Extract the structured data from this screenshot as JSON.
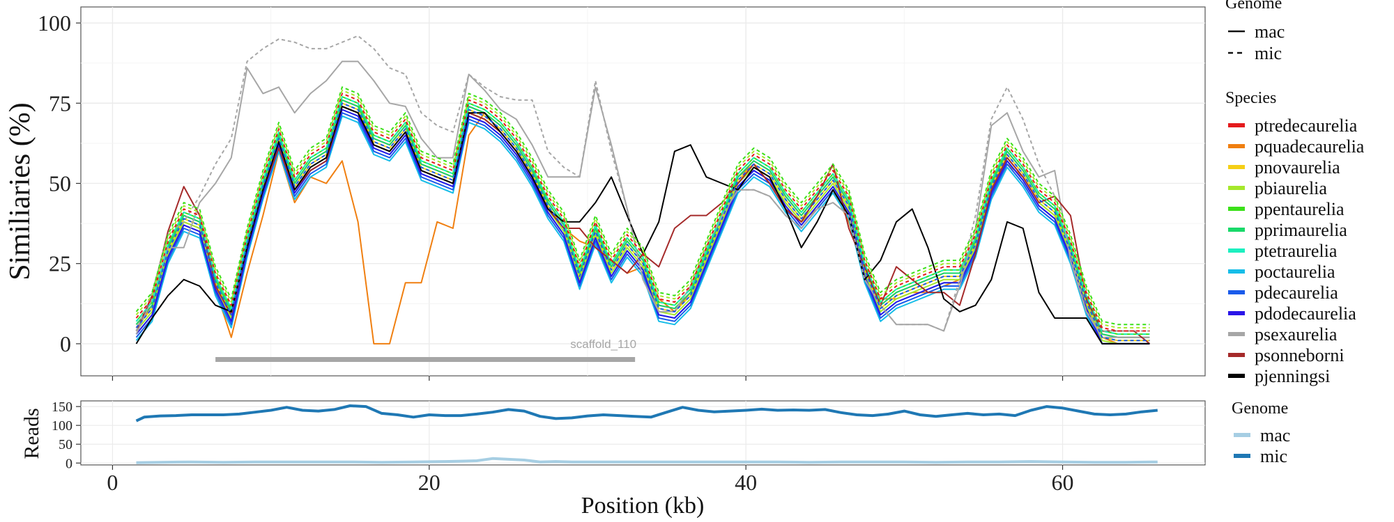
{
  "chart_data": [
    {
      "type": "line",
      "title": "",
      "xlabel": "",
      "ylabel": "Similiaries (%)",
      "xlim": [
        -2,
        69
      ],
      "ylim": [
        -10,
        105
      ],
      "xticks": [
        0,
        20,
        40,
        60
      ],
      "yticks": [
        0,
        25,
        50,
        75,
        100
      ],
      "ytick_labels": [
        "0",
        "25",
        "50",
        "75",
        "100"
      ],
      "x": [
        1.5,
        2.5,
        3.5,
        4.5,
        5.5,
        6.5,
        7.5,
        8.5,
        9.5,
        10.5,
        11.5,
        12.5,
        13.5,
        14.5,
        15.5,
        16.5,
        17.5,
        18.5,
        19.5,
        20.5,
        21.5,
        22.5,
        23.5,
        24.5,
        25.5,
        26.5,
        27.5,
        28.5,
        29.5,
        30.5,
        31.5,
        32.5,
        33.5,
        34.5,
        35.5,
        36.5,
        37.5,
        38.5,
        39.5,
        40.5,
        41.5,
        42.5,
        43.5,
        44.5,
        45.5,
        46.5,
        47.5,
        48.5,
        49.5,
        50.5,
        51.5,
        52.5,
        53.5,
        54.5,
        55.5,
        56.5,
        57.5,
        58.5,
        59.5,
        60.5,
        61.5,
        62.5,
        63.5,
        64.5,
        65.5
      ],
      "base_profile": [
        4,
        10,
        28,
        38,
        36,
        18,
        8,
        30,
        48,
        63,
        48,
        55,
        58,
        74,
        72,
        62,
        60,
        66,
        54,
        52,
        50,
        72,
        70,
        66,
        60,
        52,
        42,
        35,
        20,
        34,
        22,
        30,
        24,
        10,
        9,
        14,
        26,
        38,
        50,
        55,
        52,
        44,
        38,
        44,
        50,
        42,
        22,
        10,
        14,
        16,
        18,
        20,
        20,
        30,
        48,
        58,
        52,
        44,
        40,
        28,
        12,
        1,
        0,
        0,
        0
      ],
      "annotation": {
        "label": "scaffold_110",
        "x_start": 6.5,
        "x_end": 33
      },
      "legend_genome": {
        "title": "Genome",
        "items": [
          {
            "name": "mac",
            "style": "solid"
          },
          {
            "name": "mic",
            "style": "dashed"
          }
        ]
      },
      "legend_species": {
        "title": "Species"
      },
      "series": [
        {
          "name": "ptredecaurelia",
          "color": "#E41A1C",
          "genome": "mac",
          "offset": 2
        },
        {
          "name": "pquadecaurelia",
          "color": "#F07F10",
          "genome": "mac",
          "values": [
            5,
            12,
            28,
            38,
            36,
            17,
            2,
            22,
            40,
            60,
            44,
            52,
            50,
            57,
            38,
            0,
            0,
            19,
            19,
            38,
            36,
            65,
            72,
            66,
            60,
            52,
            42,
            36,
            32,
            30,
            26,
            22,
            24,
            14,
            10,
            16,
            24,
            36,
            52,
            56,
            50,
            44,
            38,
            42,
            48,
            38,
            22,
            14,
            14,
            16,
            16,
            18,
            20,
            30,
            48,
            56,
            52,
            44,
            40,
            28,
            12,
            2,
            0,
            0,
            0
          ]
        },
        {
          "name": "pnovaurelia",
          "color": "#F5CF16",
          "genome": "mac",
          "offset": 1
        },
        {
          "name": "pbiaurelia",
          "color": "#A5E82B",
          "genome": "mac",
          "offset": 0
        },
        {
          "name": "ppentaurelia",
          "color": "#3BE01A",
          "genome": "mac",
          "offset": 3
        },
        {
          "name": "pprimaurelia",
          "color": "#19D96A",
          "genome": "mac",
          "offset": 2
        },
        {
          "name": "ptetraurelia",
          "color": "#1CEFC0",
          "genome": "mac",
          "offset": -1
        },
        {
          "name": "poctaurelia",
          "color": "#16BDE8",
          "genome": "mac",
          "offset": -3
        },
        {
          "name": "pdecaurelia",
          "color": "#1A5BEB",
          "genome": "mac",
          "offset": -2
        },
        {
          "name": "pdodecaurelia",
          "color": "#2A15E8",
          "genome": "mac",
          "offset": -1
        },
        {
          "name": "psexaurelia",
          "color": "#A6A6A6",
          "genome": "mac",
          "values": [
            3,
            14,
            30,
            30,
            44,
            50,
            58,
            86,
            78,
            80,
            72,
            78,
            82,
            88,
            88,
            82,
            75,
            74,
            64,
            58,
            58,
            84,
            79,
            73,
            70,
            62,
            52,
            52,
            52,
            80,
            62,
            42,
            20,
            10,
            10,
            18,
            30,
            40,
            48,
            48,
            46,
            40,
            36,
            42,
            44,
            40,
            20,
            12,
            6,
            6,
            6,
            4,
            18,
            36,
            68,
            72,
            60,
            52,
            54,
            26,
            10,
            2,
            2,
            2,
            2
          ]
        },
        {
          "name": "psonneborni",
          "color": "#A52A2A",
          "genome": "mac",
          "values": [
            4,
            15,
            35,
            49,
            40,
            18,
            9,
            30,
            48,
            61,
            48,
            54,
            57,
            74,
            72,
            62,
            60,
            66,
            54,
            52,
            50,
            72,
            70,
            66,
            60,
            52,
            42,
            36,
            36,
            30,
            26,
            22,
            28,
            24,
            36,
            40,
            40,
            44,
            50,
            56,
            50,
            42,
            38,
            46,
            56,
            36,
            24,
            12,
            24,
            20,
            16,
            16,
            12,
            28,
            48,
            58,
            52,
            44,
            46,
            40,
            14,
            4,
            4,
            4,
            0
          ]
        },
        {
          "name": "pjenningsi",
          "color": "#000000",
          "genome": "mac",
          "values": [
            0,
            8,
            15,
            20,
            18,
            12,
            10,
            30,
            48,
            63,
            48,
            55,
            58,
            74,
            72,
            62,
            60,
            66,
            54,
            52,
            50,
            72,
            72,
            66,
            60,
            52,
            42,
            38,
            38,
            44,
            52,
            40,
            28,
            38,
            60,
            62,
            52,
            50,
            48,
            55,
            52,
            42,
            30,
            38,
            48,
            40,
            20,
            26,
            38,
            42,
            30,
            14,
            10,
            12,
            20,
            38,
            36,
            16,
            8,
            8,
            8,
            0,
            0,
            0,
            0
          ]
        },
        {
          "name": "psexaurelia",
          "color": "#A6A6A6",
          "genome": "mic",
          "values": [
            4,
            16,
            34,
            38,
            46,
            56,
            64,
            88,
            92,
            95,
            94,
            92,
            92,
            94,
            96,
            92,
            86,
            84,
            72,
            68,
            66,
            84,
            80,
            77,
            76,
            76,
            60,
            55,
            52,
            82,
            60,
            42,
            20,
            10,
            10,
            18,
            30,
            40,
            48,
            48,
            46,
            40,
            36,
            42,
            44,
            40,
            20,
            12,
            6,
            6,
            6,
            4,
            20,
            40,
            70,
            80,
            70,
            56,
            46,
            28,
            10,
            4,
            4,
            4,
            4
          ]
        },
        {
          "name": "ptredecaurelia",
          "color": "#E41A1C",
          "genome": "mic",
          "offset": 4
        },
        {
          "name": "pbiaurelia",
          "color": "#A5E82B",
          "genome": "mic",
          "offset": 5
        },
        {
          "name": "ppentaurelia",
          "color": "#3BE01A",
          "genome": "mic",
          "offset": 6
        },
        {
          "name": "ptetraurelia",
          "color": "#1CEFC0",
          "genome": "mic",
          "offset": 3
        },
        {
          "name": "pdecaurelia",
          "color": "#1A5BEB",
          "genome": "mic",
          "offset": 1
        }
      ]
    },
    {
      "type": "line",
      "xlabel": "Position (kb)",
      "ylabel": "Reads",
      "xlim": [
        -2,
        69
      ],
      "ylim": [
        -5,
        165
      ],
      "xticks": [
        0,
        20,
        40,
        60
      ],
      "xtick_labels": [
        "0",
        "20",
        "40",
        "60"
      ],
      "yticks": [
        0,
        50,
        100,
        150
      ],
      "ytick_labels": [
        "0",
        "50",
        "100",
        "150"
      ],
      "legend": {
        "title": "Genome",
        "items": [
          {
            "name": "mac",
            "color": "#A6CEE3"
          },
          {
            "name": "mic",
            "color": "#1F78B4"
          }
        ]
      },
      "series": [
        {
          "name": "mic",
          "color": "#1F78B4",
          "x": [
            1.5,
            2,
            3,
            4,
            5,
            6,
            7,
            8,
            9,
            10,
            11,
            12,
            13,
            14,
            15,
            16,
            17,
            18,
            19,
            20,
            21,
            22,
            23,
            24,
            25,
            26,
            27,
            28,
            29,
            30,
            31,
            32,
            33,
            34,
            35,
            36,
            37,
            38,
            39,
            40,
            41,
            42,
            43,
            44,
            45,
            46,
            47,
            48,
            49,
            50,
            51,
            52,
            53,
            54,
            55,
            56,
            57,
            58,
            59,
            60,
            61,
            62,
            63,
            64,
            65,
            66
          ],
          "values": [
            112,
            122,
            125,
            126,
            128,
            128,
            128,
            130,
            135,
            140,
            148,
            140,
            138,
            142,
            152,
            150,
            132,
            128,
            122,
            128,
            126,
            126,
            130,
            135,
            142,
            138,
            124,
            118,
            120,
            125,
            128,
            126,
            124,
            122,
            135,
            148,
            140,
            136,
            138,
            140,
            143,
            140,
            141,
            140,
            142,
            134,
            128,
            126,
            130,
            138,
            128,
            124,
            128,
            132,
            128,
            130,
            126,
            140,
            150,
            146,
            138,
            130,
            128,
            130,
            136,
            140
          ]
        },
        {
          "name": "mac",
          "color": "#A6CEE3",
          "x": [
            1.5,
            3,
            5,
            7,
            9,
            11,
            13,
            15,
            17,
            19,
            21,
            22,
            23,
            24,
            25,
            26,
            27,
            28,
            29,
            30,
            32,
            34,
            36,
            38,
            40,
            42,
            44,
            46,
            48,
            50,
            52,
            54,
            56,
            58,
            60,
            62,
            64,
            66
          ],
          "values": [
            1,
            2,
            3,
            2,
            3,
            3,
            3,
            3,
            2,
            3,
            4,
            5,
            6,
            12,
            10,
            8,
            3,
            4,
            3,
            3,
            3,
            3,
            3,
            3,
            3,
            3,
            2,
            3,
            3,
            3,
            2,
            3,
            3,
            4,
            3,
            2,
            2,
            3
          ]
        }
      ]
    }
  ]
}
